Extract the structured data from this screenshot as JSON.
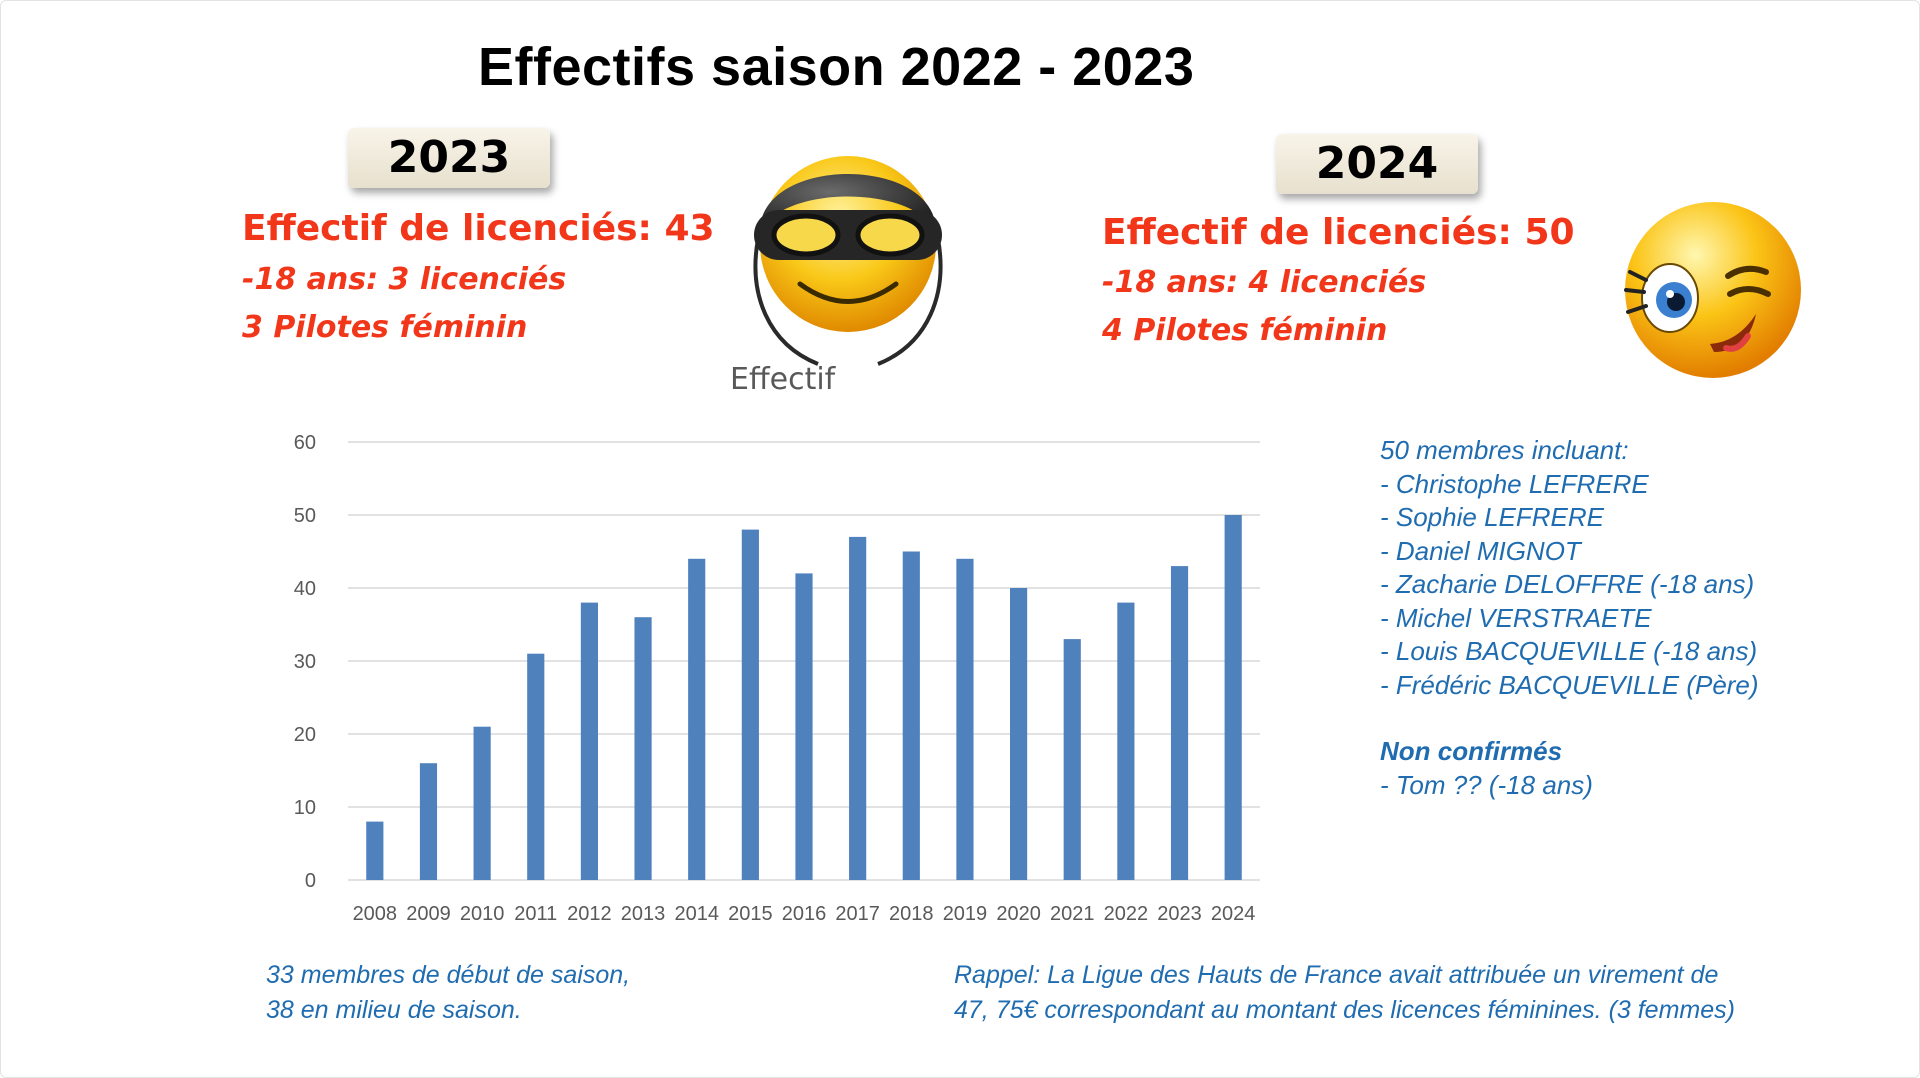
{
  "title": "Effectifs saison 2022 - 2023",
  "left": {
    "year": "2023",
    "main": "Effectif de  licenciés: 43",
    "line1": "-18 ans: 3 licenciés",
    "line2": "3 Pilotes féminin"
  },
  "right": {
    "year": "2024",
    "main": "Effectif de  licenciés: 50",
    "line1": "-18 ans:  4 licenciés",
    "line2": "4 Pilotes féminin"
  },
  "effectif_label": "Effectif",
  "members": {
    "heading": "50 membres incluant:",
    "list": [
      "- Christophe LEFRERE",
      "- Sophie LEFRERE",
      "- Daniel MIGNOT",
      "- Zacharie DELOFFRE (-18 ans)",
      "- Michel VERSTRAETE",
      "- Louis BACQUEVILLE (-18 ans)",
      "- Frédéric BACQUEVILLE (Père)"
    ],
    "unconfirmed_heading": "Non confirmés",
    "unconfirmed": [
      "- Tom ?? (-18 ans)"
    ]
  },
  "notes": {
    "left": [
      "33 membres de début de saison,",
      "38 en milieu de saison."
    ],
    "right": [
      "Rappel: La Ligue des Hauts de France avait attribuée un virement de",
      "47, 75€ correspondant au montant des licences féminines. (3 femmes)"
    ]
  },
  "colors": {
    "bar": "#4f81bd",
    "accent_red": "#f2361a",
    "text_blue": "#1f6cb0",
    "grid": "#d9d9d9"
  },
  "chart_data": {
    "type": "bar",
    "categories": [
      "2008",
      "2009",
      "2010",
      "2011",
      "2012",
      "2013",
      "2014",
      "2015",
      "2016",
      "2017",
      "2018",
      "2019",
      "2020",
      "2021",
      "2022",
      "2023",
      "2024"
    ],
    "values": [
      8,
      16,
      21,
      31,
      38,
      36,
      44,
      48,
      42,
      47,
      45,
      44,
      40,
      33,
      38,
      43,
      50
    ],
    "ylim": [
      0,
      60
    ],
    "yticks": [
      0,
      10,
      20,
      30,
      40,
      50,
      60
    ],
    "grid": true,
    "legend": "none"
  }
}
